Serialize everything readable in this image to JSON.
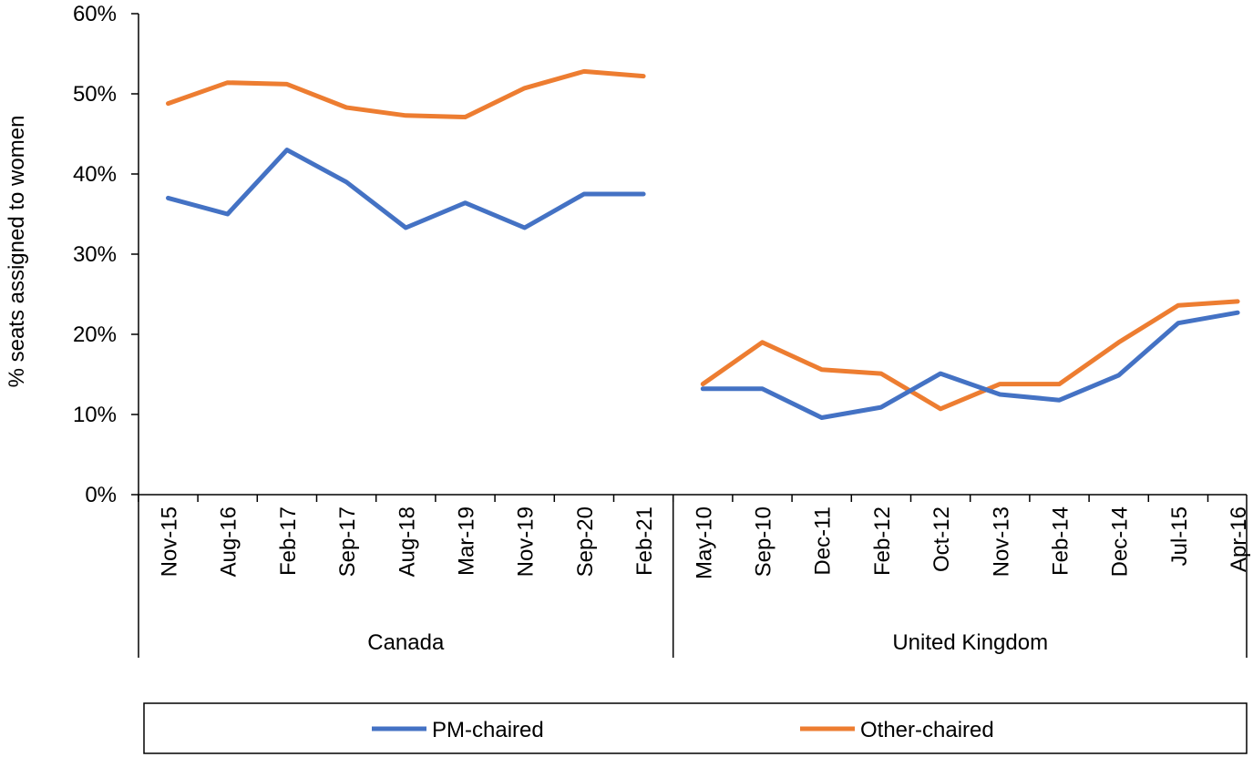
{
  "chart_data": {
    "type": "line",
    "title": "",
    "ylabel": "% seats assigned to women",
    "ylim": [
      0,
      0.6
    ],
    "yticks": [
      0,
      0.1,
      0.2,
      0.3,
      0.4,
      0.5,
      0.6
    ],
    "ytick_labels": [
      "0%",
      "10%",
      "20%",
      "30%",
      "40%",
      "50%",
      "60%"
    ],
    "grid": false,
    "legend_position": "bottom",
    "groups": [
      {
        "name": "Canada",
        "categories": [
          "Nov-15",
          "Aug-16",
          "Feb-17",
          "Sep-17",
          "Aug-18",
          "Mar-19",
          "Nov-19",
          "Sep-20",
          "Feb-21"
        ],
        "series": [
          {
            "name": "PM-chaired",
            "values": [
              0.37,
              0.35,
              0.43,
              0.39,
              0.333,
              0.364,
              0.333,
              0.375,
              0.375
            ]
          },
          {
            "name": "Other-chaired",
            "values": [
              0.488,
              0.514,
              0.512,
              0.483,
              0.473,
              0.471,
              0.507,
              0.528,
              0.522
            ]
          }
        ]
      },
      {
        "name": "United Kingdom",
        "categories": [
          "May-10",
          "Sep-10",
          "Dec-11",
          "Feb-12",
          "Oct-12",
          "Nov-13",
          "Feb-14",
          "Dec-14",
          "Jul-15",
          "Apr-16"
        ],
        "series": [
          {
            "name": "PM-chaired",
            "values": [
              0.132,
              0.132,
              0.096,
              0.109,
              0.151,
              0.125,
              0.118,
              0.149,
              0.214,
              0.227
            ]
          },
          {
            "name": "Other-chaired",
            "values": [
              0.138,
              0.19,
              0.156,
              0.151,
              0.107,
              0.138,
              0.138,
              0.19,
              0.236,
              0.241
            ]
          }
        ]
      }
    ],
    "colors": {
      "PM-chaired": "#4472C4",
      "Other-chaired": "#ED7D31"
    }
  },
  "legend": {
    "items": [
      {
        "label": "PM-chaired",
        "color": "#4472C4"
      },
      {
        "label": "Other-chaired",
        "color": "#ED7D31"
      }
    ]
  }
}
